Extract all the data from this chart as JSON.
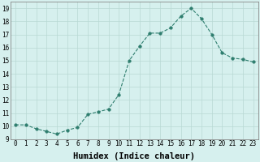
{
  "x": [
    0,
    1,
    2,
    3,
    4,
    5,
    6,
    7,
    8,
    9,
    10,
    11,
    12,
    13,
    14,
    15,
    16,
    17,
    18,
    19,
    20,
    21,
    22,
    23
  ],
  "y": [
    10.1,
    10.1,
    9.8,
    9.6,
    9.4,
    9.7,
    9.9,
    10.9,
    11.1,
    11.3,
    12.4,
    15.0,
    16.1,
    17.1,
    17.1,
    17.5,
    18.4,
    19.0,
    18.2,
    17.0,
    15.6,
    15.2,
    15.1,
    14.9
  ],
  "line_color": "#2e7d6e",
  "marker": "o",
  "marker_size": 2.5,
  "bg_color": "#d6f0ee",
  "grid_color": "#b8d8d4",
  "xlabel": "Humidex (Indice chaleur)",
  "ylim": [
    9,
    19.5
  ],
  "xlim": [
    -0.5,
    23.5
  ],
  "yticks": [
    9,
    10,
    11,
    12,
    13,
    14,
    15,
    16,
    17,
    18,
    19
  ],
  "xtick_labels": [
    "0",
    "1",
    "2",
    "3",
    "4",
    "5",
    "6",
    "7",
    "8",
    "9",
    "10",
    "11",
    "12",
    "13",
    "14",
    "15",
    "16",
    "17",
    "18",
    "19",
    "20",
    "21",
    "22",
    "23"
  ],
  "tick_fontsize": 5.5,
  "label_fontsize": 7.5
}
